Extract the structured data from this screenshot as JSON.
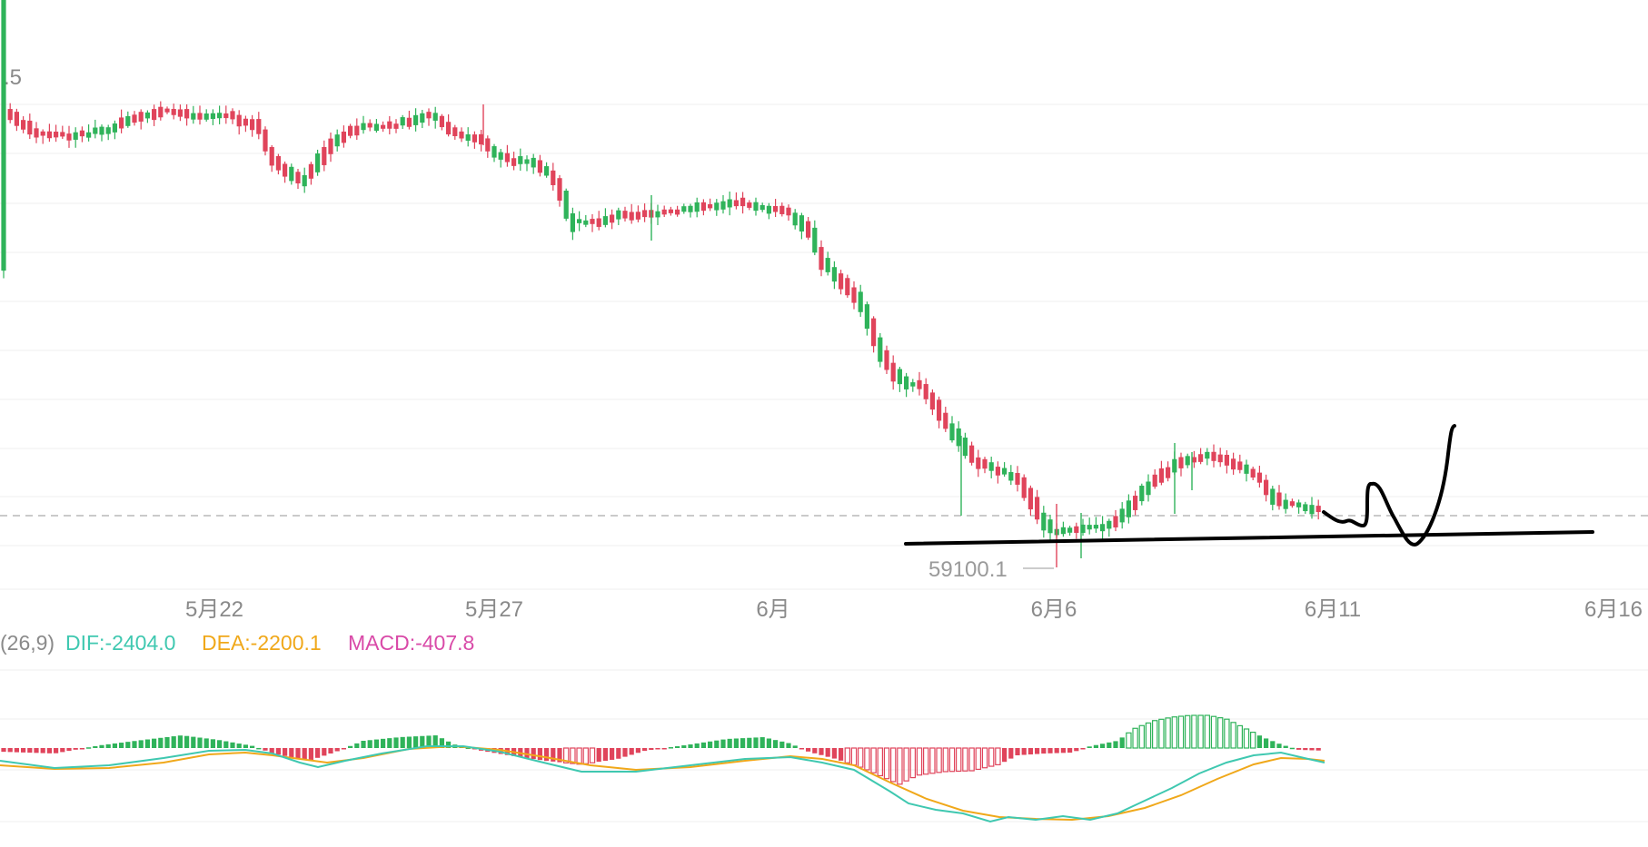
{
  "colors": {
    "up": "#2fb35a",
    "down": "#e0445b",
    "grid": "#efefef",
    "dashed_line": "#b8b8b8",
    "dif": "#3fc8b0",
    "dea": "#f0a81a",
    "macd": "#d94aa8",
    "drawing": "#000000"
  },
  "price_axis": {
    "top_label": ".5"
  },
  "low_marker": {
    "label": "59100.1"
  },
  "macd_header": {
    "params": "(26,9)",
    "dif": "DIF:-2404.0",
    "dea": "DEA:-2200.1",
    "macd": "MACD:-407.8"
  },
  "chart_data": {
    "type": "candlestick",
    "x_tick_labels": [
      "5月22",
      "5月27",
      "6月",
      "6月6",
      "6月11",
      "6月16"
    ],
    "low_label_value": 59100.1,
    "indicator": {
      "name": "MACD",
      "dif": -2404.0,
      "dea": -2200.1,
      "macd": -407.8
    }
  }
}
